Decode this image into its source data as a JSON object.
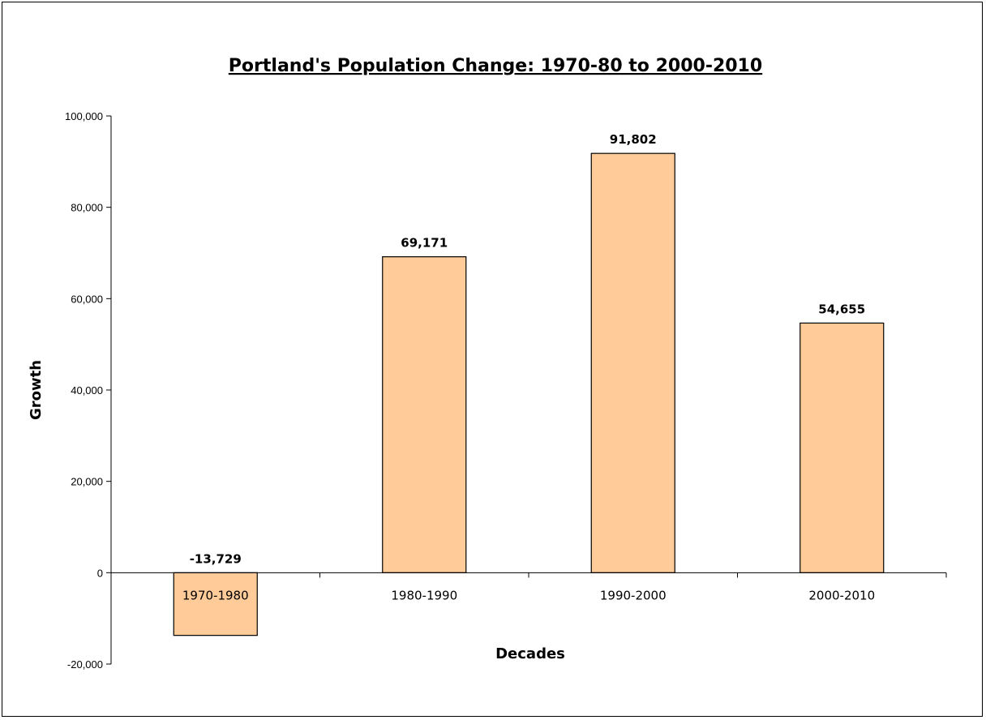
{
  "chart_data": {
    "type": "bar",
    "title": "Portland's Population Change: 1970-80 to 2000-2010",
    "xlabel": "Decades",
    "ylabel": "Growth",
    "categories": [
      "1970-1980",
      "1980-1990",
      "1990-2000",
      "2000-2010"
    ],
    "values": [
      -13729,
      69171,
      91802,
      54655
    ],
    "value_labels": [
      "-13,729",
      "69,171",
      "91,802",
      "54,655"
    ],
    "ylim": [
      -20000,
      100000
    ],
    "yticks": [
      -20000,
      0,
      20000,
      40000,
      60000,
      80000,
      100000
    ],
    "ytick_labels": [
      "-20,000",
      "0",
      "20,000",
      "40,000",
      "60,000",
      "80,000",
      "100,000"
    ],
    "grid": false,
    "legend": "none",
    "bar_color": "#FFCC99",
    "bar_stroke": "#000000"
  }
}
